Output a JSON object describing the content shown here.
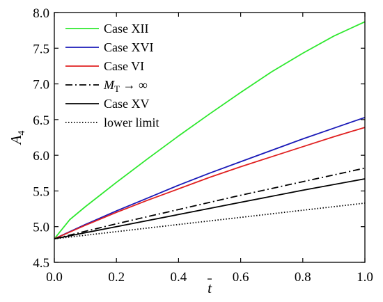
{
  "chart_data": {
    "type": "line",
    "xlabel": "t",
    "ylabel": "A",
    "ylabel_subscript": "4",
    "xlim": [
      0.0,
      1.0
    ],
    "ylim": [
      4.5,
      8.0
    ],
    "x_ticks": [
      "0.0",
      "0.2",
      "0.4",
      "0.6",
      "0.8",
      "1.0"
    ],
    "y_ticks": [
      "4.5",
      "5.0",
      "5.5",
      "6.0",
      "6.5",
      "7.0",
      "7.5",
      "8.0"
    ],
    "grid": false,
    "legend_position": "top-left",
    "series": [
      {
        "name": "Case XII",
        "color": "#2ee82e",
        "style": "solid",
        "x": [
          0,
          0.05,
          0.1,
          0.2,
          0.3,
          0.4,
          0.5,
          0.6,
          0.7,
          0.8,
          0.9,
          1.0
        ],
        "y": [
          4.83,
          5.1,
          5.28,
          5.62,
          5.95,
          6.27,
          6.58,
          6.88,
          7.17,
          7.43,
          7.67,
          7.87
        ]
      },
      {
        "name": "Case XVI",
        "color": "#1a1ab8",
        "style": "solid",
        "x": [
          0,
          0.1,
          0.2,
          0.3,
          0.4,
          0.5,
          0.6,
          0.7,
          0.8,
          0.9,
          1.0
        ],
        "y": [
          4.83,
          5.03,
          5.22,
          5.4,
          5.58,
          5.75,
          5.91,
          6.07,
          6.23,
          6.38,
          6.53
        ]
      },
      {
        "name": "Case VI",
        "color": "#e02020",
        "style": "solid",
        "x": [
          0,
          0.1,
          0.2,
          0.3,
          0.4,
          0.5,
          0.6,
          0.7,
          0.8,
          0.9,
          1.0
        ],
        "y": [
          4.83,
          5.02,
          5.2,
          5.37,
          5.53,
          5.69,
          5.84,
          5.98,
          6.12,
          6.26,
          6.39
        ]
      },
      {
        "name": "M_T → ∞",
        "color": "#000000",
        "style": "dashdot",
        "x": [
          0,
          0.2,
          0.4,
          0.6,
          0.8,
          1.0
        ],
        "y": [
          4.83,
          5.04,
          5.24,
          5.44,
          5.63,
          5.82
        ]
      },
      {
        "name": "Case XV",
        "color": "#000000",
        "style": "solid",
        "x": [
          0,
          0.2,
          0.4,
          0.6,
          0.8,
          1.0
        ],
        "y": [
          4.83,
          5.0,
          5.17,
          5.34,
          5.51,
          5.67
        ]
      },
      {
        "name": "lower limit",
        "color": "#000000",
        "style": "dotted",
        "x": [
          0,
          0.2,
          0.4,
          0.6,
          0.8,
          1.0
        ],
        "y": [
          4.83,
          4.93,
          5.03,
          5.13,
          5.23,
          5.33
        ]
      }
    ]
  }
}
